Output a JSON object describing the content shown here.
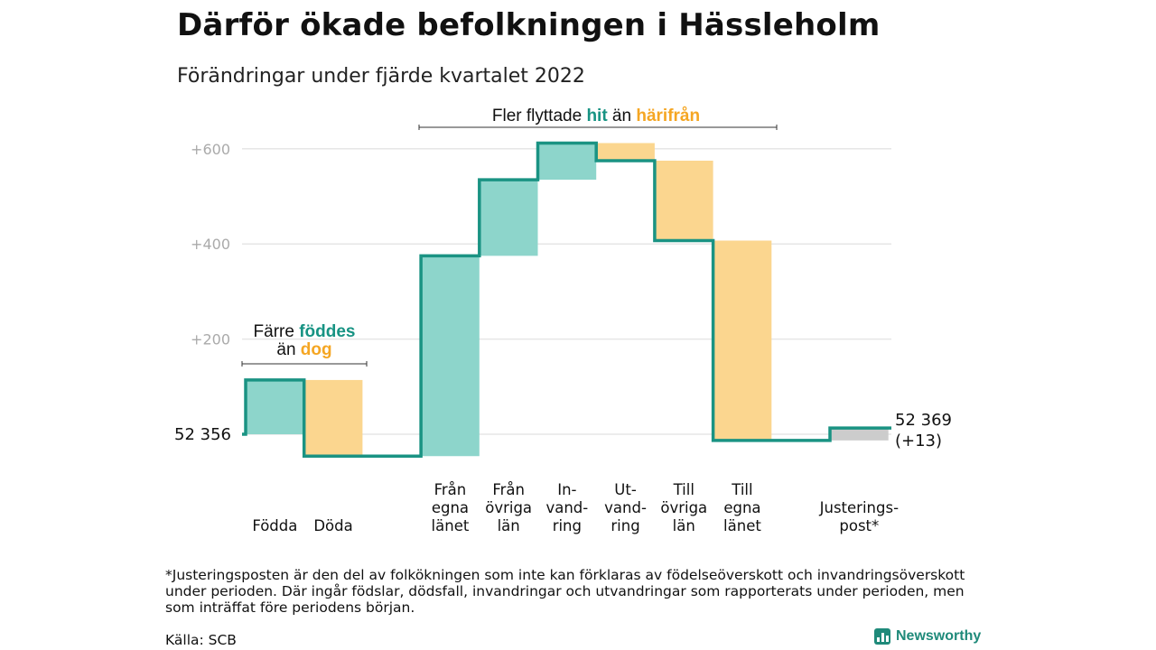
{
  "title": "Därför ökade befolkningen i Hässleholm",
  "subtitle": "Förändringar under fjärde kvartalet 2022",
  "colors": {
    "in": "#8dd5cb",
    "out": "#fbd68f",
    "line": "#1a9383",
    "adj": "#cccccc",
    "teal_text": "#179383",
    "orange_text": "#f5a623",
    "grid": "#e6e6e6",
    "tick": "#aaaaaa"
  },
  "annotations": {
    "births_deaths": {
      "part1": "Färre ",
      "hl1": "föddes",
      "part2": "än ",
      "hl2": "dog"
    },
    "migration": {
      "part1": "Fler flyttade ",
      "hl1": "hit",
      "part2": " än ",
      "hl2": "härifrån"
    }
  },
  "labels": {
    "start": "52 356",
    "end_value": "52 369",
    "end_change": "(+13)"
  },
  "chart_data": {
    "type": "waterfall",
    "start_value": 52356,
    "end_value": 52369,
    "y_ticks": [
      {
        "value": 200,
        "label": "+200"
      },
      {
        "value": 400,
        "label": "+400"
      },
      {
        "value": 600,
        "label": "+600"
      }
    ],
    "ylim": [
      -60,
      620
    ],
    "steps": [
      {
        "label": [
          "Födda"
        ],
        "change": 114,
        "kind": "in"
      },
      {
        "label": [
          "Döda"
        ],
        "change": -160,
        "kind": "out"
      },
      {
        "label": [],
        "change": 0,
        "kind": "gap"
      },
      {
        "label": [
          "Från",
          "egna",
          "länet"
        ],
        "change": 421,
        "kind": "in"
      },
      {
        "label": [
          "Från",
          "övriga",
          "län"
        ],
        "change": 160,
        "kind": "in"
      },
      {
        "label": [
          "In-",
          "vand-",
          "ring"
        ],
        "change": 77,
        "kind": "in"
      },
      {
        "label": [
          "Ut-",
          "vand-",
          "ring"
        ],
        "change": -37,
        "kind": "out"
      },
      {
        "label": [
          "Till",
          "övriga",
          "län"
        ],
        "change": -168,
        "kind": "out"
      },
      {
        "label": [
          "Till",
          "egna",
          "länet"
        ],
        "change": -420,
        "kind": "out"
      },
      {
        "label": [],
        "change": 0,
        "kind": "gap"
      },
      {
        "label": [
          "Justerings-",
          "post*"
        ],
        "change": 26,
        "kind": "adj"
      }
    ]
  },
  "footnote": "*Justeringsposten är den del av folkökningen som inte kan förklaras av födelseöverskott och invandringsöverskott under perioden. Där ingår födslar, dödsfall, invandringar och utvandringar som rapporterats under perioden, men som inträffat före periodens början.",
  "source": "Källa: SCB",
  "brand": "Newsworthy"
}
